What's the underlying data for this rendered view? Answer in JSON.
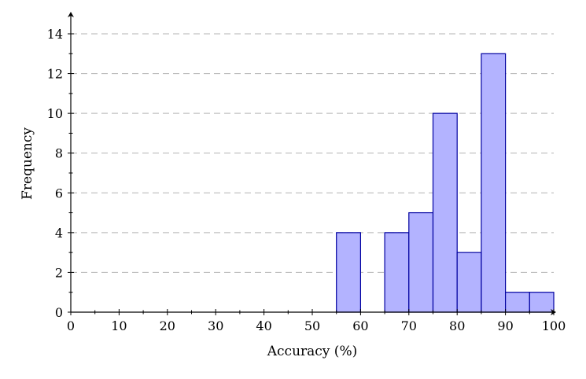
{
  "chart_data": {
    "type": "bar",
    "subtype": "histogram",
    "title": "",
    "xlabel": "Accuracy (%)",
    "ylabel": "Frequency",
    "xlim": [
      0,
      100
    ],
    "ylim": [
      0,
      15
    ],
    "bin_width": 5,
    "bins": [
      {
        "from": 55,
        "to": 60,
        "count": 4
      },
      {
        "from": 65,
        "to": 70,
        "count": 4
      },
      {
        "from": 70,
        "to": 75,
        "count": 5
      },
      {
        "from": 75,
        "to": 80,
        "count": 10
      },
      {
        "from": 80,
        "to": 85,
        "count": 3
      },
      {
        "from": 85,
        "to": 90,
        "count": 13
      },
      {
        "from": 90,
        "to": 95,
        "count": 1
      },
      {
        "from": 95,
        "to": 100,
        "count": 1
      }
    ],
    "categories": [
      "0-5",
      "5-10",
      "10-15",
      "15-20",
      "20-25",
      "25-30",
      "30-35",
      "35-40",
      "40-45",
      "45-50",
      "50-55",
      "55-60",
      "60-65",
      "65-70",
      "70-75",
      "75-80",
      "80-85",
      "85-90",
      "90-95",
      "95-100"
    ],
    "values": [
      0,
      0,
      0,
      0,
      0,
      0,
      0,
      0,
      0,
      0,
      0,
      4,
      0,
      4,
      5,
      10,
      3,
      13,
      1,
      1
    ],
    "x_ticks": [
      0,
      10,
      20,
      30,
      40,
      50,
      60,
      70,
      80,
      90,
      100
    ],
    "x_minor_ticks": [
      5,
      15,
      25,
      35,
      45,
      55,
      65,
      75,
      85,
      95
    ],
    "y_ticks": [
      0,
      2,
      4,
      6,
      8,
      10,
      12,
      14
    ],
    "y_minor_ticks": [
      1,
      3,
      5,
      7,
      9,
      11,
      13
    ],
    "grid": {
      "y": true,
      "x": false,
      "style": "dashed"
    },
    "legend": null,
    "colors": {
      "bar_fill": "#b3b3ff",
      "bar_edge": "#0000a0",
      "grid": "#b3b3b3",
      "axis": "#000000"
    }
  }
}
